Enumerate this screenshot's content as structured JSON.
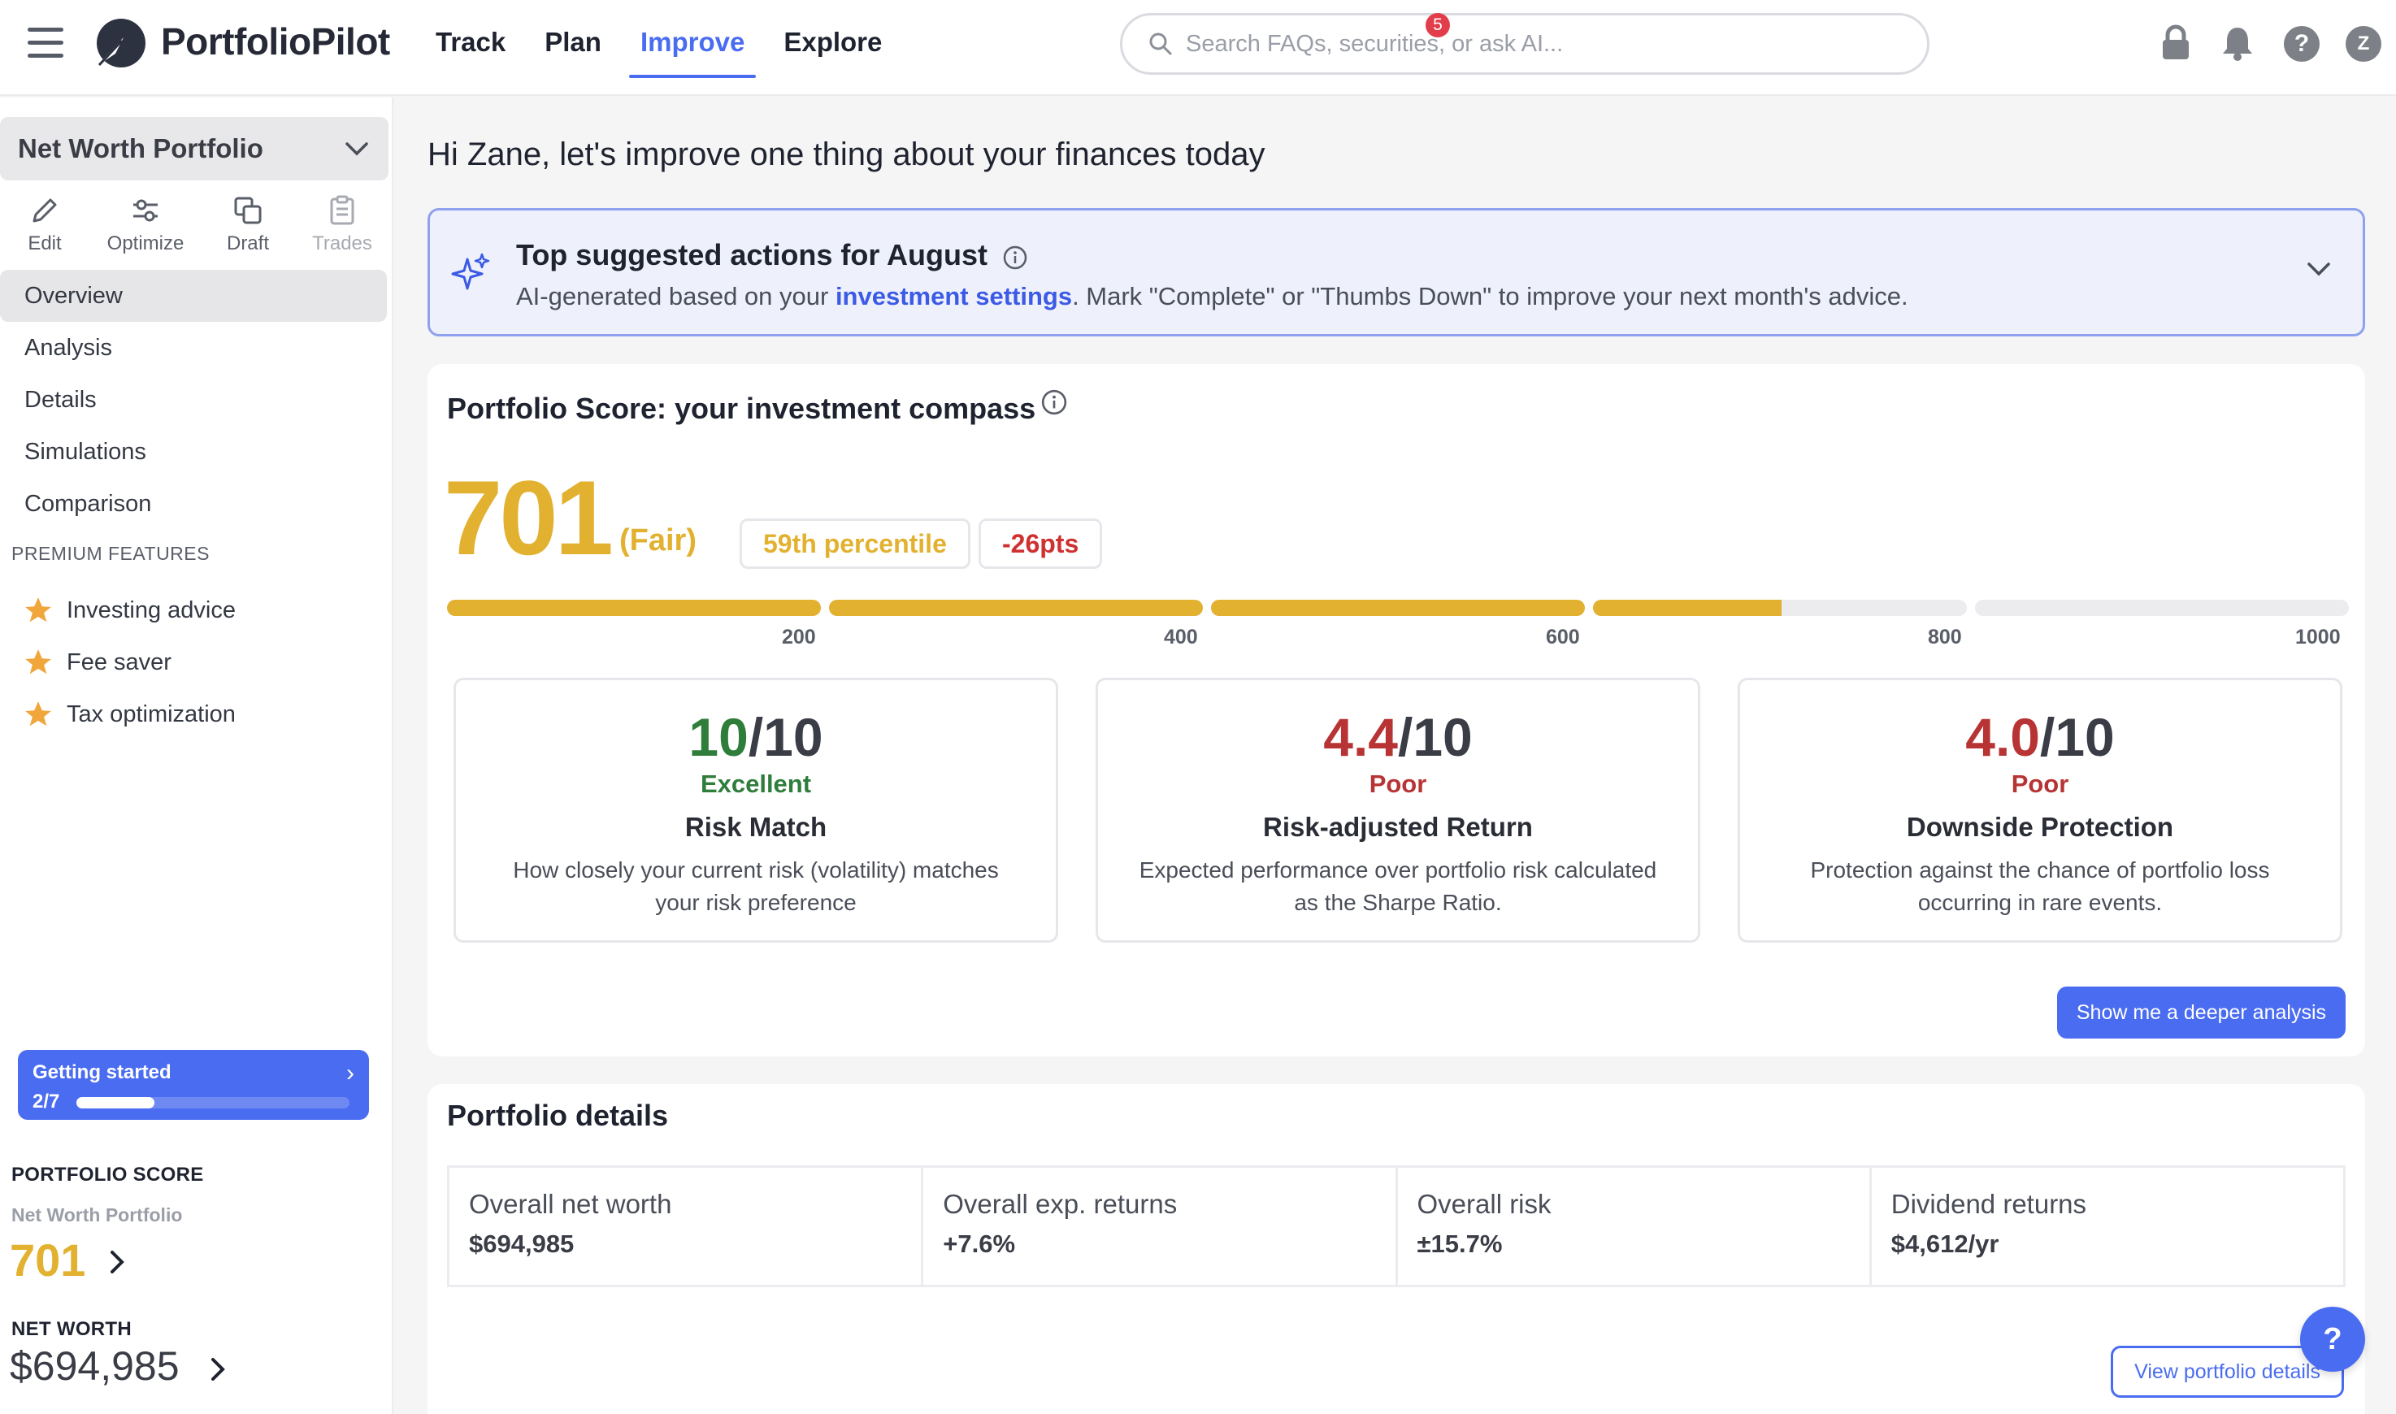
{
  "header": {
    "brand": "PortfolioPilot",
    "nav": [
      "Track",
      "Plan",
      "Improve",
      "Explore"
    ],
    "active_nav": "Improve",
    "search_placeholder": "Search FAQs, securities, or ask AI...",
    "notification_count": "5",
    "help_label": "?",
    "avatar_initial": "Z",
    "accent_color": "#4a6cf0"
  },
  "sidebar": {
    "portfolio_select": "Net Worth Portfolio",
    "tools": [
      {
        "label": "Edit",
        "icon": "pencil-icon"
      },
      {
        "label": "Optimize",
        "icon": "sliders-icon"
      },
      {
        "label": "Draft",
        "icon": "copy-icon"
      },
      {
        "label": "Trades",
        "icon": "clipboard-icon",
        "disabled": true
      }
    ],
    "menu": [
      "Overview",
      "Analysis",
      "Details",
      "Simulations",
      "Comparison"
    ],
    "active_menu": "Overview",
    "premium_heading": "PREMIUM FEATURES",
    "premium": [
      "Investing advice",
      "Fee saver",
      "Tax optimization"
    ],
    "getting_started": {
      "title": "Getting started",
      "count": "2/7",
      "progress": 0.2857
    },
    "portfolio_score_heading": "PORTFOLIO SCORE",
    "portfolio_score_sub": "Net Worth Portfolio",
    "portfolio_score_value": "701",
    "net_worth_heading": "NET WORTH",
    "net_worth_value": "$694,985"
  },
  "main": {
    "greeting": "Hi Zane, let's improve one thing about your finances today",
    "suggestions": {
      "title": "Top suggested actions for August",
      "desc_prefix": "AI-generated based on your ",
      "desc_link": "investment settings",
      "desc_suffix": ". Mark \"Complete\" or \"Thumbs Down\" to improve your next month's advice."
    },
    "score_card": {
      "title": "Portfolio Score: your investment compass",
      "score": "701",
      "rating": "(Fair)",
      "percentile": "59th percentile",
      "change": "-26pts",
      "score_value": 701,
      "scale_max": 1000,
      "ticks": [
        "200",
        "400",
        "600",
        "800",
        "1000"
      ],
      "metrics": [
        {
          "score": "10",
          "of": "/10",
          "rating": "Excellent",
          "name": "Risk Match",
          "desc": "How closely your current risk (volatility) matches your risk preference",
          "good": true
        },
        {
          "score": "4.4",
          "of": "/10",
          "rating": "Poor",
          "name": "Risk-adjusted Return",
          "desc": "Expected performance over portfolio risk calculated as the Sharpe Ratio.",
          "good": false
        },
        {
          "score": "4.0",
          "of": "/10",
          "rating": "Poor",
          "name": "Downside Protection",
          "desc": "Protection against the chance of portfolio loss occurring in rare events.",
          "good": false
        }
      ],
      "cta": "Show me a deeper analysis"
    },
    "details_card": {
      "title": "Portfolio details",
      "cells": [
        {
          "label": "Overall net worth",
          "value": "$694,985"
        },
        {
          "label": "Overall exp. returns",
          "value": "+7.6%"
        },
        {
          "label": "Overall risk",
          "value": "±15.7%"
        },
        {
          "label": "Dividend returns",
          "value": "$4,612/yr"
        }
      ],
      "cta": "View portfolio details"
    },
    "fab_label": "?"
  }
}
